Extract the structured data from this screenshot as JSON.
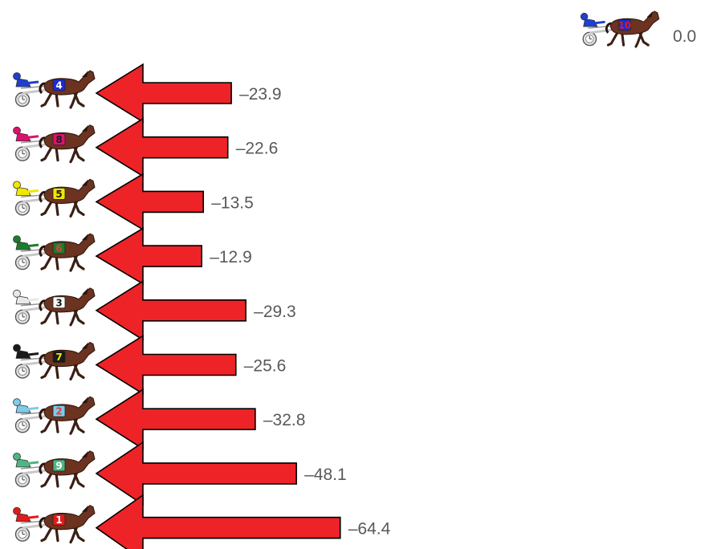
{
  "chart_data": {
    "type": "bar",
    "orientation": "horizontal",
    "value_label_prefix": "–",
    "leader": {
      "number": "10",
      "value": 0.0,
      "value_label": "0.0",
      "saddle_color": "#1c2bd6",
      "number_color": "#e01b1b",
      "jockey_color": "#1f3fd0"
    },
    "horses": [
      {
        "number": "4",
        "value": -23.9,
        "value_label": "–23.9",
        "saddle_color": "#1c2bd6",
        "number_color": "#ffffff",
        "jockey_color": "#1f3fd0"
      },
      {
        "number": "8",
        "value": -22.6,
        "value_label": "–22.6",
        "saddle_color": "#e0106e",
        "number_color": "#1a1a1a",
        "jockey_color": "#e0106e"
      },
      {
        "number": "5",
        "value": -13.5,
        "value_label": "–13.5",
        "saddle_color": "#f2e600",
        "number_color": "#1a1a1a",
        "jockey_color": "#f2e600"
      },
      {
        "number": "6",
        "value": -12.9,
        "value_label": "–12.9",
        "saddle_color": "#1e7a2c",
        "number_color": "#e0403a",
        "jockey_color": "#1e7a2c"
      },
      {
        "number": "3",
        "value": -29.3,
        "value_label": "–29.3",
        "saddle_color": "#ffffff",
        "number_color": "#1a1a1a",
        "jockey_color": "#e8e8e8"
      },
      {
        "number": "7",
        "value": -25.6,
        "value_label": "–25.6",
        "saddle_color": "#1a1a1a",
        "number_color": "#f2e600",
        "jockey_color": "#1a1a1a"
      },
      {
        "number": "2",
        "value": -32.8,
        "value_label": "–32.8",
        "saddle_color": "#7ecbea",
        "number_color": "#e0403a",
        "jockey_color": "#7ecbea"
      },
      {
        "number": "9",
        "value": -48.1,
        "value_label": "–48.1",
        "saddle_color": "#4fb582",
        "number_color": "#ffffff",
        "jockey_color": "#4fb582"
      },
      {
        "number": "1",
        "value": -64.4,
        "value_label": "–64.4",
        "saddle_color": "#e01b1b",
        "number_color": "#ffffff",
        "jockey_color": "#e01b1b"
      }
    ],
    "arrow_color": "#ee2327",
    "arrow_outline": "#000000",
    "label_color": "#595959",
    "grid": false,
    "legend": "none"
  }
}
